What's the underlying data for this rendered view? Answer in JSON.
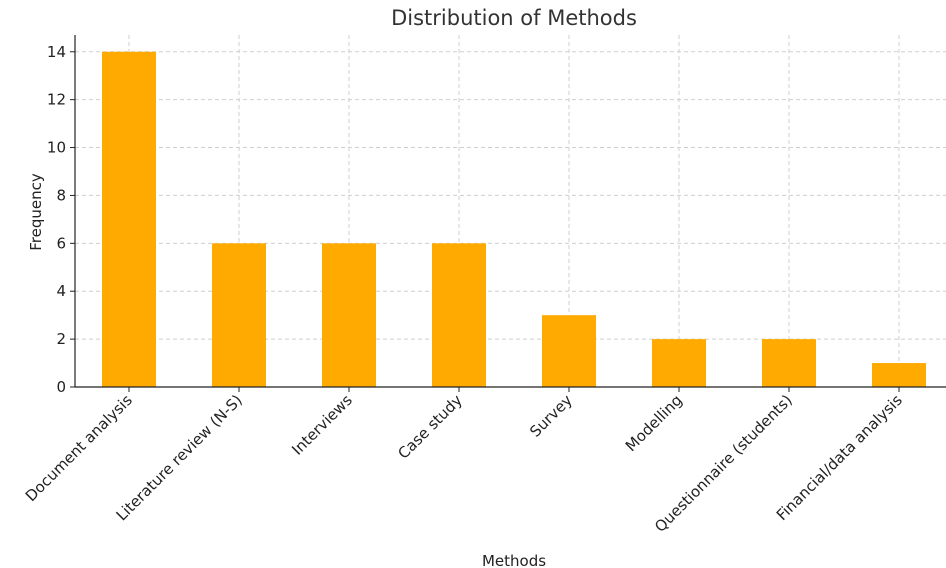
{
  "chart_data": {
    "type": "bar",
    "title": "Distribution of Methods",
    "xlabel": "Methods",
    "ylabel": "Frequency",
    "categories": [
      "Document analysis",
      "Literature review (N-S)",
      "Interviews",
      "Case study",
      "Survey",
      "Modelling",
      "Questionnaire (students)",
      "Financial/data analysis"
    ],
    "values": [
      14,
      6,
      6,
      6,
      3,
      2,
      2,
      1
    ],
    "ylim": [
      0,
      14.7
    ],
    "yticks": [
      0,
      2,
      4,
      6,
      8,
      10,
      12,
      14
    ],
    "grid": true,
    "bar_color": "#FFAA00"
  }
}
